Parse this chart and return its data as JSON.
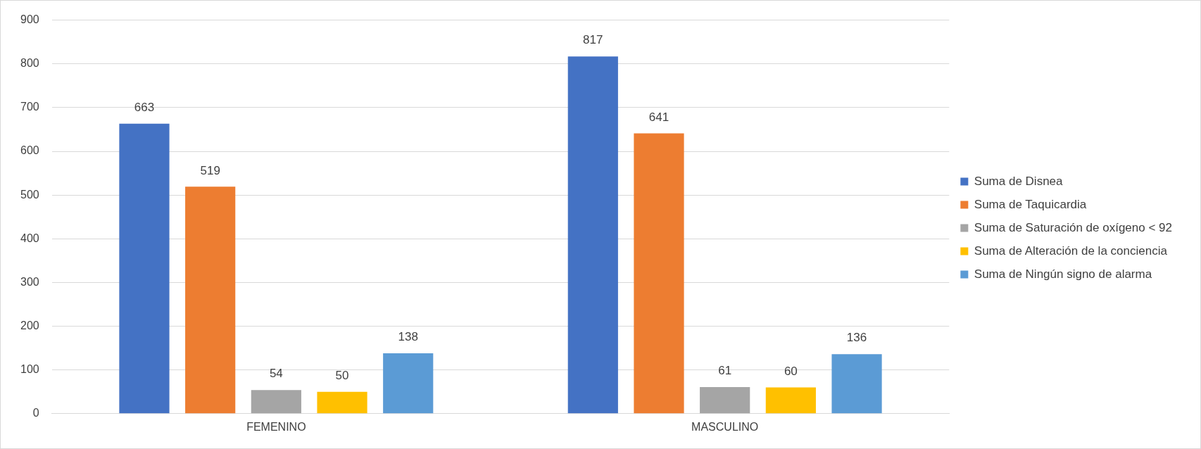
{
  "chart_data": {
    "type": "bar",
    "categories": [
      "FEMENINO",
      "MASCULINO"
    ],
    "series": [
      {
        "name": "Suma de Disnea",
        "color": "#4472c4",
        "values": [
          663,
          817
        ]
      },
      {
        "name": "Suma de Taquicardia",
        "color": "#ed7d31",
        "values": [
          519,
          641
        ]
      },
      {
        "name": "Suma de Saturación de oxígeno < 92",
        "color": "#a5a5a5",
        "values": [
          54,
          61
        ]
      },
      {
        "name": "Suma de Alteración de la conciencia",
        "color": "#ffc000",
        "values": [
          50,
          60
        ]
      },
      {
        "name": "Suma de Ningún signo de alarma",
        "color": "#5b9bd5",
        "values": [
          138,
          136
        ]
      }
    ],
    "ylim": [
      0,
      900
    ],
    "yticks": [
      0,
      100,
      200,
      300,
      400,
      500,
      600,
      700,
      800,
      900
    ],
    "grid": "y",
    "legend": "right",
    "data_labels": true
  }
}
